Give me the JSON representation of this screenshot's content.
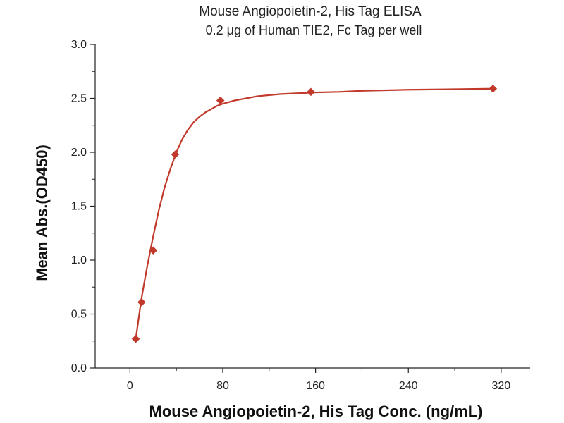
{
  "chart_data": {
    "type": "scatter",
    "title": "Mouse Angiopoietin-2, His Tag ELISA",
    "subtitle": "0.2 μg of Human TIE2, Fc Tag per well",
    "xlabel": "Mouse Angiopoietin-2, His Tag Conc. (ng/mL)",
    "ylabel": "Mean Abs.(OD450)",
    "xlim": [
      -30,
      345
    ],
    "ylim": [
      0,
      3.0
    ],
    "x_ticks": [
      0,
      80,
      160,
      240,
      320
    ],
    "x_tick_labels": [
      "0",
      "80",
      "160",
      "240",
      "320"
    ],
    "y_ticks": [
      0,
      0.5,
      1.0,
      1.5,
      2.0,
      2.5,
      3.0
    ],
    "y_tick_labels": [
      "0.0",
      "0.5",
      "1.0",
      "1.5",
      "2.0",
      "2.5",
      "3.0"
    ],
    "grid": false,
    "series": [
      {
        "marker": "diamond",
        "color": "#c0392b",
        "x": [
          5,
          10,
          20,
          39,
          78,
          156,
          313
        ],
        "y": [
          0.27,
          0.61,
          1.09,
          1.98,
          2.48,
          2.56,
          2.59
        ]
      }
    ],
    "fit_curve": {
      "color": "#c0392b",
      "x": [
        5,
        10,
        15,
        20,
        25,
        30,
        35,
        40,
        45,
        50,
        55,
        60,
        65,
        70,
        75,
        80,
        90,
        100,
        110,
        120,
        130,
        140,
        150,
        160,
        180,
        200,
        240,
        280,
        313
      ],
      "y": [
        0.27,
        0.65,
        0.95,
        1.22,
        1.47,
        1.68,
        1.85,
        2.0,
        2.12,
        2.21,
        2.28,
        2.33,
        2.37,
        2.4,
        2.43,
        2.45,
        2.48,
        2.5,
        2.52,
        2.53,
        2.54,
        2.545,
        2.55,
        2.555,
        2.56,
        2.57,
        2.58,
        2.585,
        2.59
      ]
    }
  }
}
